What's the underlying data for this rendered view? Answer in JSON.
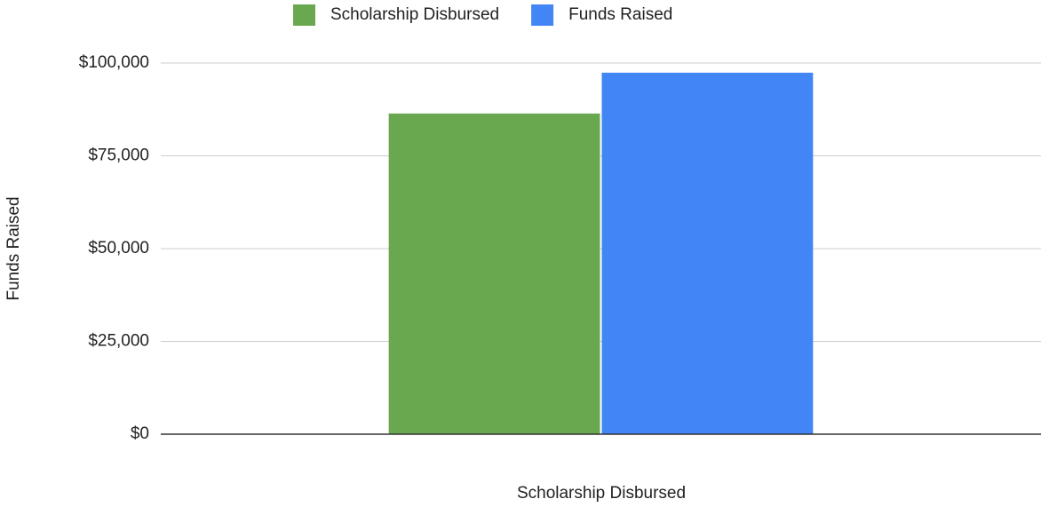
{
  "chart_data": {
    "type": "bar",
    "x_label": "Scholarship Disbursed",
    "y_label": "Funds Raised",
    "categories": [
      null
    ],
    "series": [
      {
        "name": "Scholarship Disbursed",
        "color": "#6aa84f",
        "values": [
          86400
        ]
      },
      {
        "name": "Funds Raised",
        "color": "#4285f4",
        "values": [
          97400
        ]
      }
    ],
    "ylim": [
      0,
      100000
    ],
    "yticks": [
      {
        "value": 0,
        "label": "$0"
      },
      {
        "value": 25000,
        "label": "$25,000"
      },
      {
        "value": 50000,
        "label": "$50,000"
      },
      {
        "value": 75000,
        "label": "$75,000"
      },
      {
        "value": 100000,
        "label": "$100,000"
      }
    ],
    "grid": true,
    "legend": "top"
  }
}
